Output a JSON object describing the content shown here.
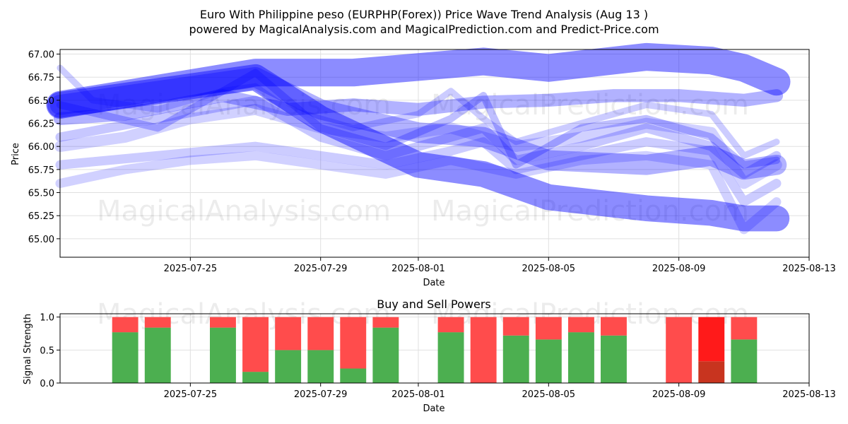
{
  "header": {
    "title_line1": "Euro With Philippine peso (EURPHP(Forex)) Price Wave Trend Analysis (Aug 13 )",
    "title_line2": "powered by MagicalAnalysis.com and MagicalPrediction.com and Predict-Price.com"
  },
  "watermarks": [
    "MagicalAnalysis.com",
    "MagicalPrediction.com"
  ],
  "colors": {
    "wave": "#0000ff",
    "buy": "#4caf50",
    "sell": "#ff4c4c",
    "sell_strong": "#ff1a1a",
    "buy_dark": "#c8341f"
  },
  "chart_data": [
    {
      "type": "area",
      "title": "",
      "xlabel": "Date",
      "ylabel": "Price",
      "x_tick_labels": [
        "2025-07-25",
        "2025-07-29",
        "2025-08-01",
        "2025-08-05",
        "2025-08-09",
        "2025-08-13"
      ],
      "y_tick_labels": [
        "65.00",
        "65.25",
        "65.50",
        "65.75",
        "66.00",
        "66.25",
        "66.50",
        "66.75",
        "67.00"
      ],
      "xlim": [
        "2025-07-21",
        "2025-08-13"
      ],
      "ylim": [
        64.8,
        67.05
      ],
      "grid": true,
      "series": [
        {
          "points": [
            [
              "2025-07-21",
              66.45
            ],
            [
              "2025-07-27",
              66.8
            ],
            [
              "2025-07-30",
              66.8
            ],
            [
              "2025-08-03",
              66.92
            ],
            [
              "2025-08-05",
              66.85
            ],
            [
              "2025-08-08",
              66.97
            ],
            [
              "2025-08-10",
              66.93
            ],
            [
              "2025-08-11",
              66.85
            ],
            [
              "2025-08-12",
              66.7
            ]
          ],
          "width": 0.3,
          "opacity": 0.45
        },
        {
          "points": [
            [
              "2025-07-21",
              66.45
            ],
            [
              "2025-07-27",
              66.75
            ],
            [
              "2025-07-29",
              66.4
            ],
            [
              "2025-08-01",
              66.15
            ],
            [
              "2025-08-03",
              66.1
            ],
            [
              "2025-08-05",
              65.85
            ],
            [
              "2025-08-08",
              65.8
            ],
            [
              "2025-08-10",
              65.9
            ],
            [
              "2025-08-11",
              65.75
            ],
            [
              "2025-08-12",
              65.8
            ]
          ],
          "width": 0.22,
          "opacity": 0.3
        },
        {
          "points": [
            [
              "2025-07-21",
              66.45
            ],
            [
              "2025-07-27",
              66.75
            ],
            [
              "2025-07-29",
              66.3
            ],
            [
              "2025-08-01",
              65.8
            ],
            [
              "2025-08-03",
              65.7
            ],
            [
              "2025-08-05",
              65.45
            ],
            [
              "2025-08-08",
              65.33
            ],
            [
              "2025-08-10",
              65.28
            ],
            [
              "2025-08-11",
              65.22
            ],
            [
              "2025-08-12",
              65.22
            ]
          ],
          "width": 0.28,
          "opacity": 0.45
        },
        {
          "points": [
            [
              "2025-07-21",
              66.45
            ],
            [
              "2025-07-24",
              66.2
            ],
            [
              "2025-07-27",
              66.8
            ],
            [
              "2025-07-29",
              66.2
            ],
            [
              "2025-07-31",
              66.0
            ],
            [
              "2025-08-02",
              66.3
            ],
            [
              "2025-08-03",
              66.55
            ],
            [
              "2025-08-04",
              65.8
            ],
            [
              "2025-08-06",
              66.2
            ],
            [
              "2025-08-08",
              66.3
            ],
            [
              "2025-08-10",
              66.1
            ],
            [
              "2025-08-11",
              65.8
            ],
            [
              "2025-08-12",
              65.85
            ]
          ],
          "width": 0.08,
          "opacity": 0.25
        },
        {
          "points": [
            [
              "2025-07-21",
              66.1
            ],
            [
              "2025-07-24",
              66.3
            ],
            [
              "2025-07-27",
              66.5
            ],
            [
              "2025-07-29",
              66.1
            ],
            [
              "2025-07-31",
              65.9
            ],
            [
              "2025-08-02",
              66.1
            ],
            [
              "2025-08-03",
              66.2
            ],
            [
              "2025-08-04",
              65.85
            ],
            [
              "2025-08-06",
              66.0
            ],
            [
              "2025-08-08",
              66.2
            ],
            [
              "2025-08-10",
              66.0
            ],
            [
              "2025-08-11",
              65.7
            ],
            [
              "2025-08-12",
              65.9
            ]
          ],
          "width": 0.1,
          "opacity": 0.22
        },
        {
          "points": [
            [
              "2025-07-21",
              65.8
            ],
            [
              "2025-07-24",
              65.9
            ],
            [
              "2025-07-27",
              66.0
            ],
            [
              "2025-07-29",
              65.9
            ],
            [
              "2025-07-31",
              65.8
            ],
            [
              "2025-08-02",
              65.95
            ],
            [
              "2025-08-03",
              66.05
            ],
            [
              "2025-08-04",
              65.75
            ],
            [
              "2025-08-06",
              65.9
            ],
            [
              "2025-08-08",
              66.05
            ],
            [
              "2025-08-10",
              65.95
            ],
            [
              "2025-08-11",
              65.4
            ],
            [
              "2025-08-12",
              65.6
            ]
          ],
          "width": 0.1,
          "opacity": 0.2
        },
        {
          "points": [
            [
              "2025-07-21",
              66.85
            ],
            [
              "2025-07-22",
              66.5
            ],
            [
              "2025-07-24",
              66.4
            ],
            [
              "2025-07-26",
              66.6
            ],
            [
              "2025-07-27",
              66.65
            ],
            [
              "2025-07-28",
              66.4
            ],
            [
              "2025-07-30",
              66.2
            ],
            [
              "2025-08-01",
              66.35
            ],
            [
              "2025-08-02",
              66.6
            ],
            [
              "2025-08-03",
              66.3
            ],
            [
              "2025-08-04",
              66.05
            ],
            [
              "2025-08-06",
              66.25
            ],
            [
              "2025-08-08",
              66.45
            ],
            [
              "2025-08-10",
              66.35
            ],
            [
              "2025-08-11",
              65.9
            ],
            [
              "2025-08-12",
              66.05
            ]
          ],
          "width": 0.07,
          "opacity": 0.2
        },
        {
          "points": [
            [
              "2025-07-21",
              66.3
            ],
            [
              "2025-07-23",
              66.35
            ],
            [
              "2025-07-26",
              66.55
            ],
            [
              "2025-07-28",
              66.4
            ],
            [
              "2025-07-30",
              66.45
            ],
            [
              "2025-08-01",
              66.4
            ],
            [
              "2025-08-03",
              66.48
            ],
            [
              "2025-08-05",
              66.5
            ],
            [
              "2025-08-07",
              66.55
            ],
            [
              "2025-08-09",
              66.55
            ],
            [
              "2025-08-11",
              66.5
            ],
            [
              "2025-08-12",
              66.55
            ]
          ],
          "width": 0.14,
          "opacity": 0.3
        },
        {
          "points": [
            [
              "2025-07-21",
              66.0
            ],
            [
              "2025-07-23",
              66.1
            ],
            [
              "2025-07-25",
              66.3
            ],
            [
              "2025-07-27",
              66.4
            ],
            [
              "2025-07-29",
              66.2
            ],
            [
              "2025-07-31",
              66.1
            ],
            [
              "2025-08-02",
              66.2
            ],
            [
              "2025-08-04",
              66.0
            ],
            [
              "2025-08-06",
              66.1
            ],
            [
              "2025-08-08",
              66.25
            ],
            [
              "2025-08-10",
              66.15
            ],
            [
              "2025-08-11",
              65.6
            ],
            [
              "2025-08-12",
              65.8
            ]
          ],
          "width": 0.12,
          "opacity": 0.18
        },
        {
          "points": [
            [
              "2025-07-21",
              65.6
            ],
            [
              "2025-07-23",
              65.75
            ],
            [
              "2025-07-25",
              65.85
            ],
            [
              "2025-07-27",
              65.9
            ],
            [
              "2025-07-29",
              65.8
            ],
            [
              "2025-07-31",
              65.7
            ],
            [
              "2025-08-02",
              65.85
            ],
            [
              "2025-08-04",
              65.7
            ],
            [
              "2025-08-06",
              65.85
            ],
            [
              "2025-08-08",
              65.9
            ],
            [
              "2025-08-10",
              65.8
            ],
            [
              "2025-08-11",
              65.1
            ],
            [
              "2025-08-12",
              65.4
            ]
          ],
          "width": 0.1,
          "opacity": 0.18
        }
      ]
    },
    {
      "type": "bar",
      "title": "Buy and Sell Powers",
      "xlabel": "Date",
      "ylabel": "Signal Strength",
      "x_tick_labels": [
        "2025-07-25",
        "2025-07-29",
        "2025-08-01",
        "2025-08-05",
        "2025-08-09",
        "2025-08-13"
      ],
      "y_tick_labels": [
        "0.0",
        "0.5",
        "1.0"
      ],
      "xlim": [
        "2025-07-21",
        "2025-08-13"
      ],
      "ylim": [
        0,
        1.05
      ],
      "grid": true,
      "categories": [
        "2025-07-23",
        "2025-07-24",
        "2025-07-26",
        "2025-07-27",
        "2025-07-28",
        "2025-07-29",
        "2025-07-30",
        "2025-07-31",
        "2025-08-02",
        "2025-08-03",
        "2025-08-04",
        "2025-08-05",
        "2025-08-06",
        "2025-08-07",
        "2025-08-09",
        "2025-08-10",
        "2025-08-11"
      ],
      "series": [
        {
          "name": "Buy",
          "values": [
            0.77,
            0.84,
            0.84,
            0.17,
            0.5,
            0.5,
            0.22,
            0.84,
            0.77,
            0.0,
            0.72,
            0.66,
            0.77,
            0.72,
            0.0,
            0.33,
            0.66
          ]
        },
        {
          "name": "Sell",
          "values": [
            0.23,
            0.16,
            0.16,
            0.83,
            0.5,
            0.5,
            0.78,
            0.16,
            0.23,
            1.0,
            0.28,
            0.34,
            0.23,
            0.28,
            1.0,
            0.67,
            0.34
          ]
        }
      ],
      "highlight_category": "2025-08-10"
    }
  ]
}
